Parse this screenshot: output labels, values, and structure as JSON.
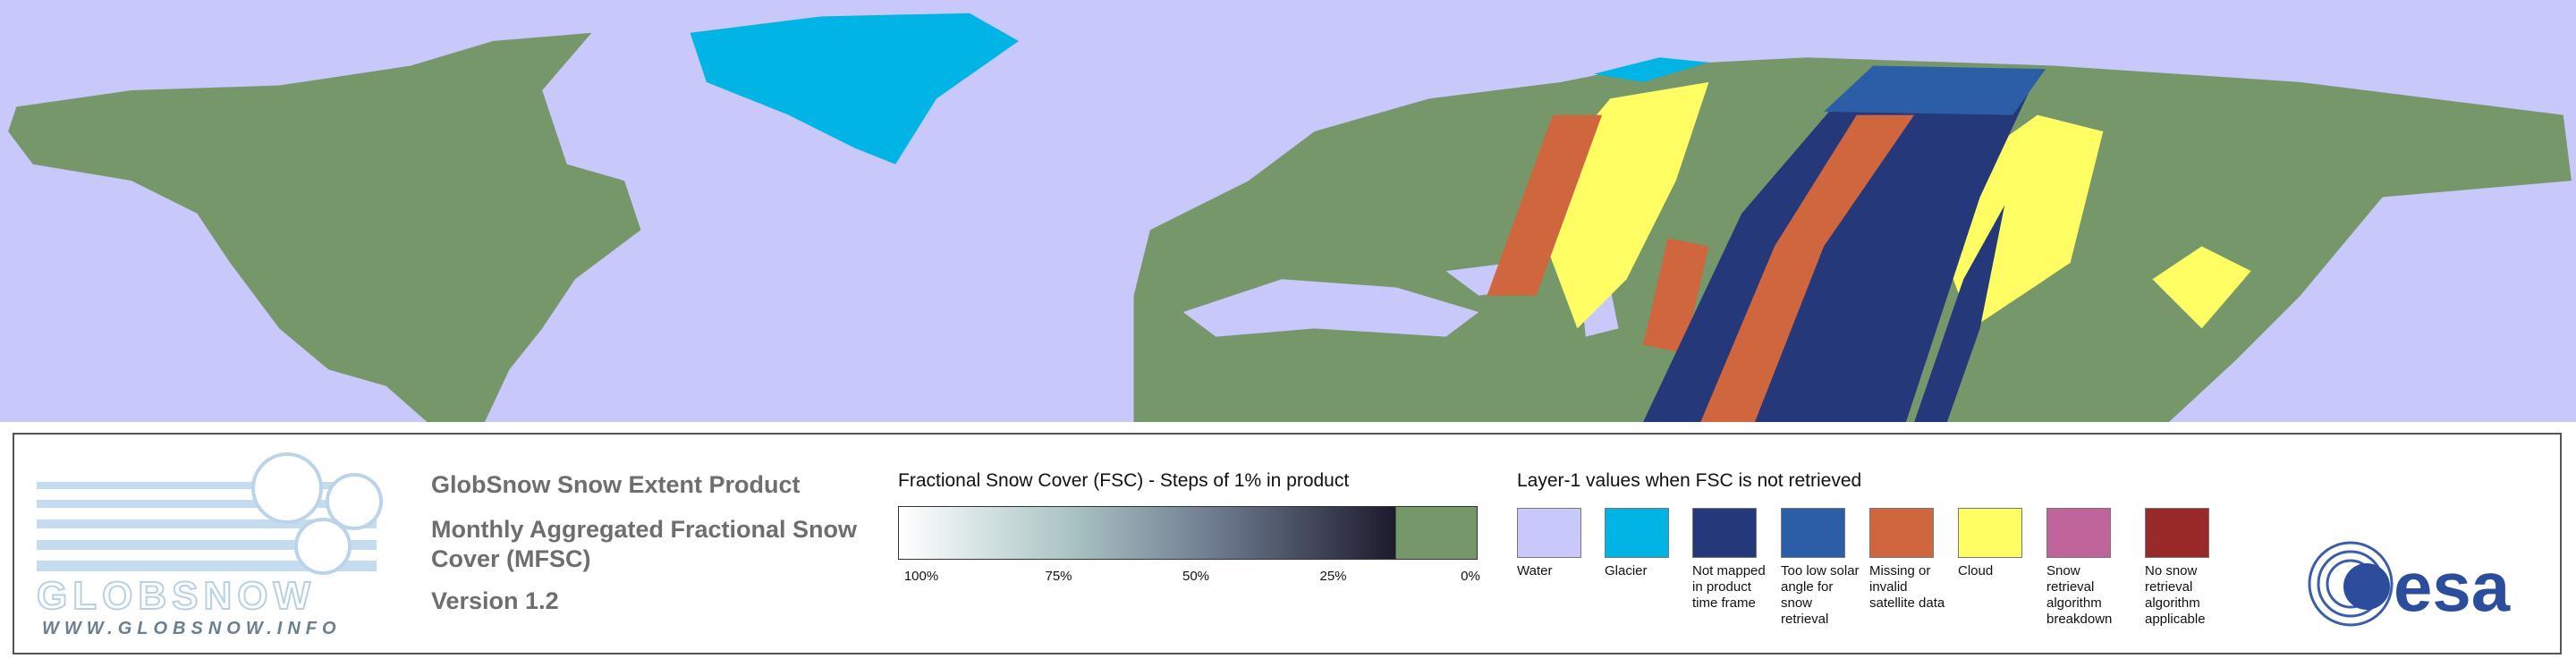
{
  "logo": {
    "name": "GLOBSNOW",
    "url": "WWW.GLOBSNOW.INFO"
  },
  "product": {
    "title": "GlobSnow Snow Extent Product",
    "subtitle": "Monthly Aggregated Fractional Snow Cover (MFSC)",
    "version": "Version 1.2"
  },
  "fsc_scale": {
    "title": "Fractional Snow Cover (FSC) - Steps of 1% in product",
    "ticks": [
      "100%",
      "75%",
      "50%",
      "25%",
      "0%"
    ]
  },
  "layer1": {
    "title": "Layer-1 values when FSC is not retrieved",
    "classes": [
      {
        "label": "Water",
        "color": "#c8c8fa"
      },
      {
        "label": "Glacier",
        "color": "#00b4e6"
      },
      {
        "label": "Not mapped in product time frame",
        "color": "#25387a"
      },
      {
        "label": "Too low solar angle for snow retrieval",
        "color": "#2c5ea8"
      },
      {
        "label": "Missing or invalid satellite data",
        "color": "#d0663e"
      },
      {
        "label": "Cloud",
        "color": "#ffff64"
      },
      {
        "label": "Snow retrieval algorithm breakdown",
        "color": "#c0649c"
      },
      {
        "label": "No snow retrieval algorithm applicable",
        "color": "#9a2a2a"
      }
    ]
  },
  "agency": "esa"
}
